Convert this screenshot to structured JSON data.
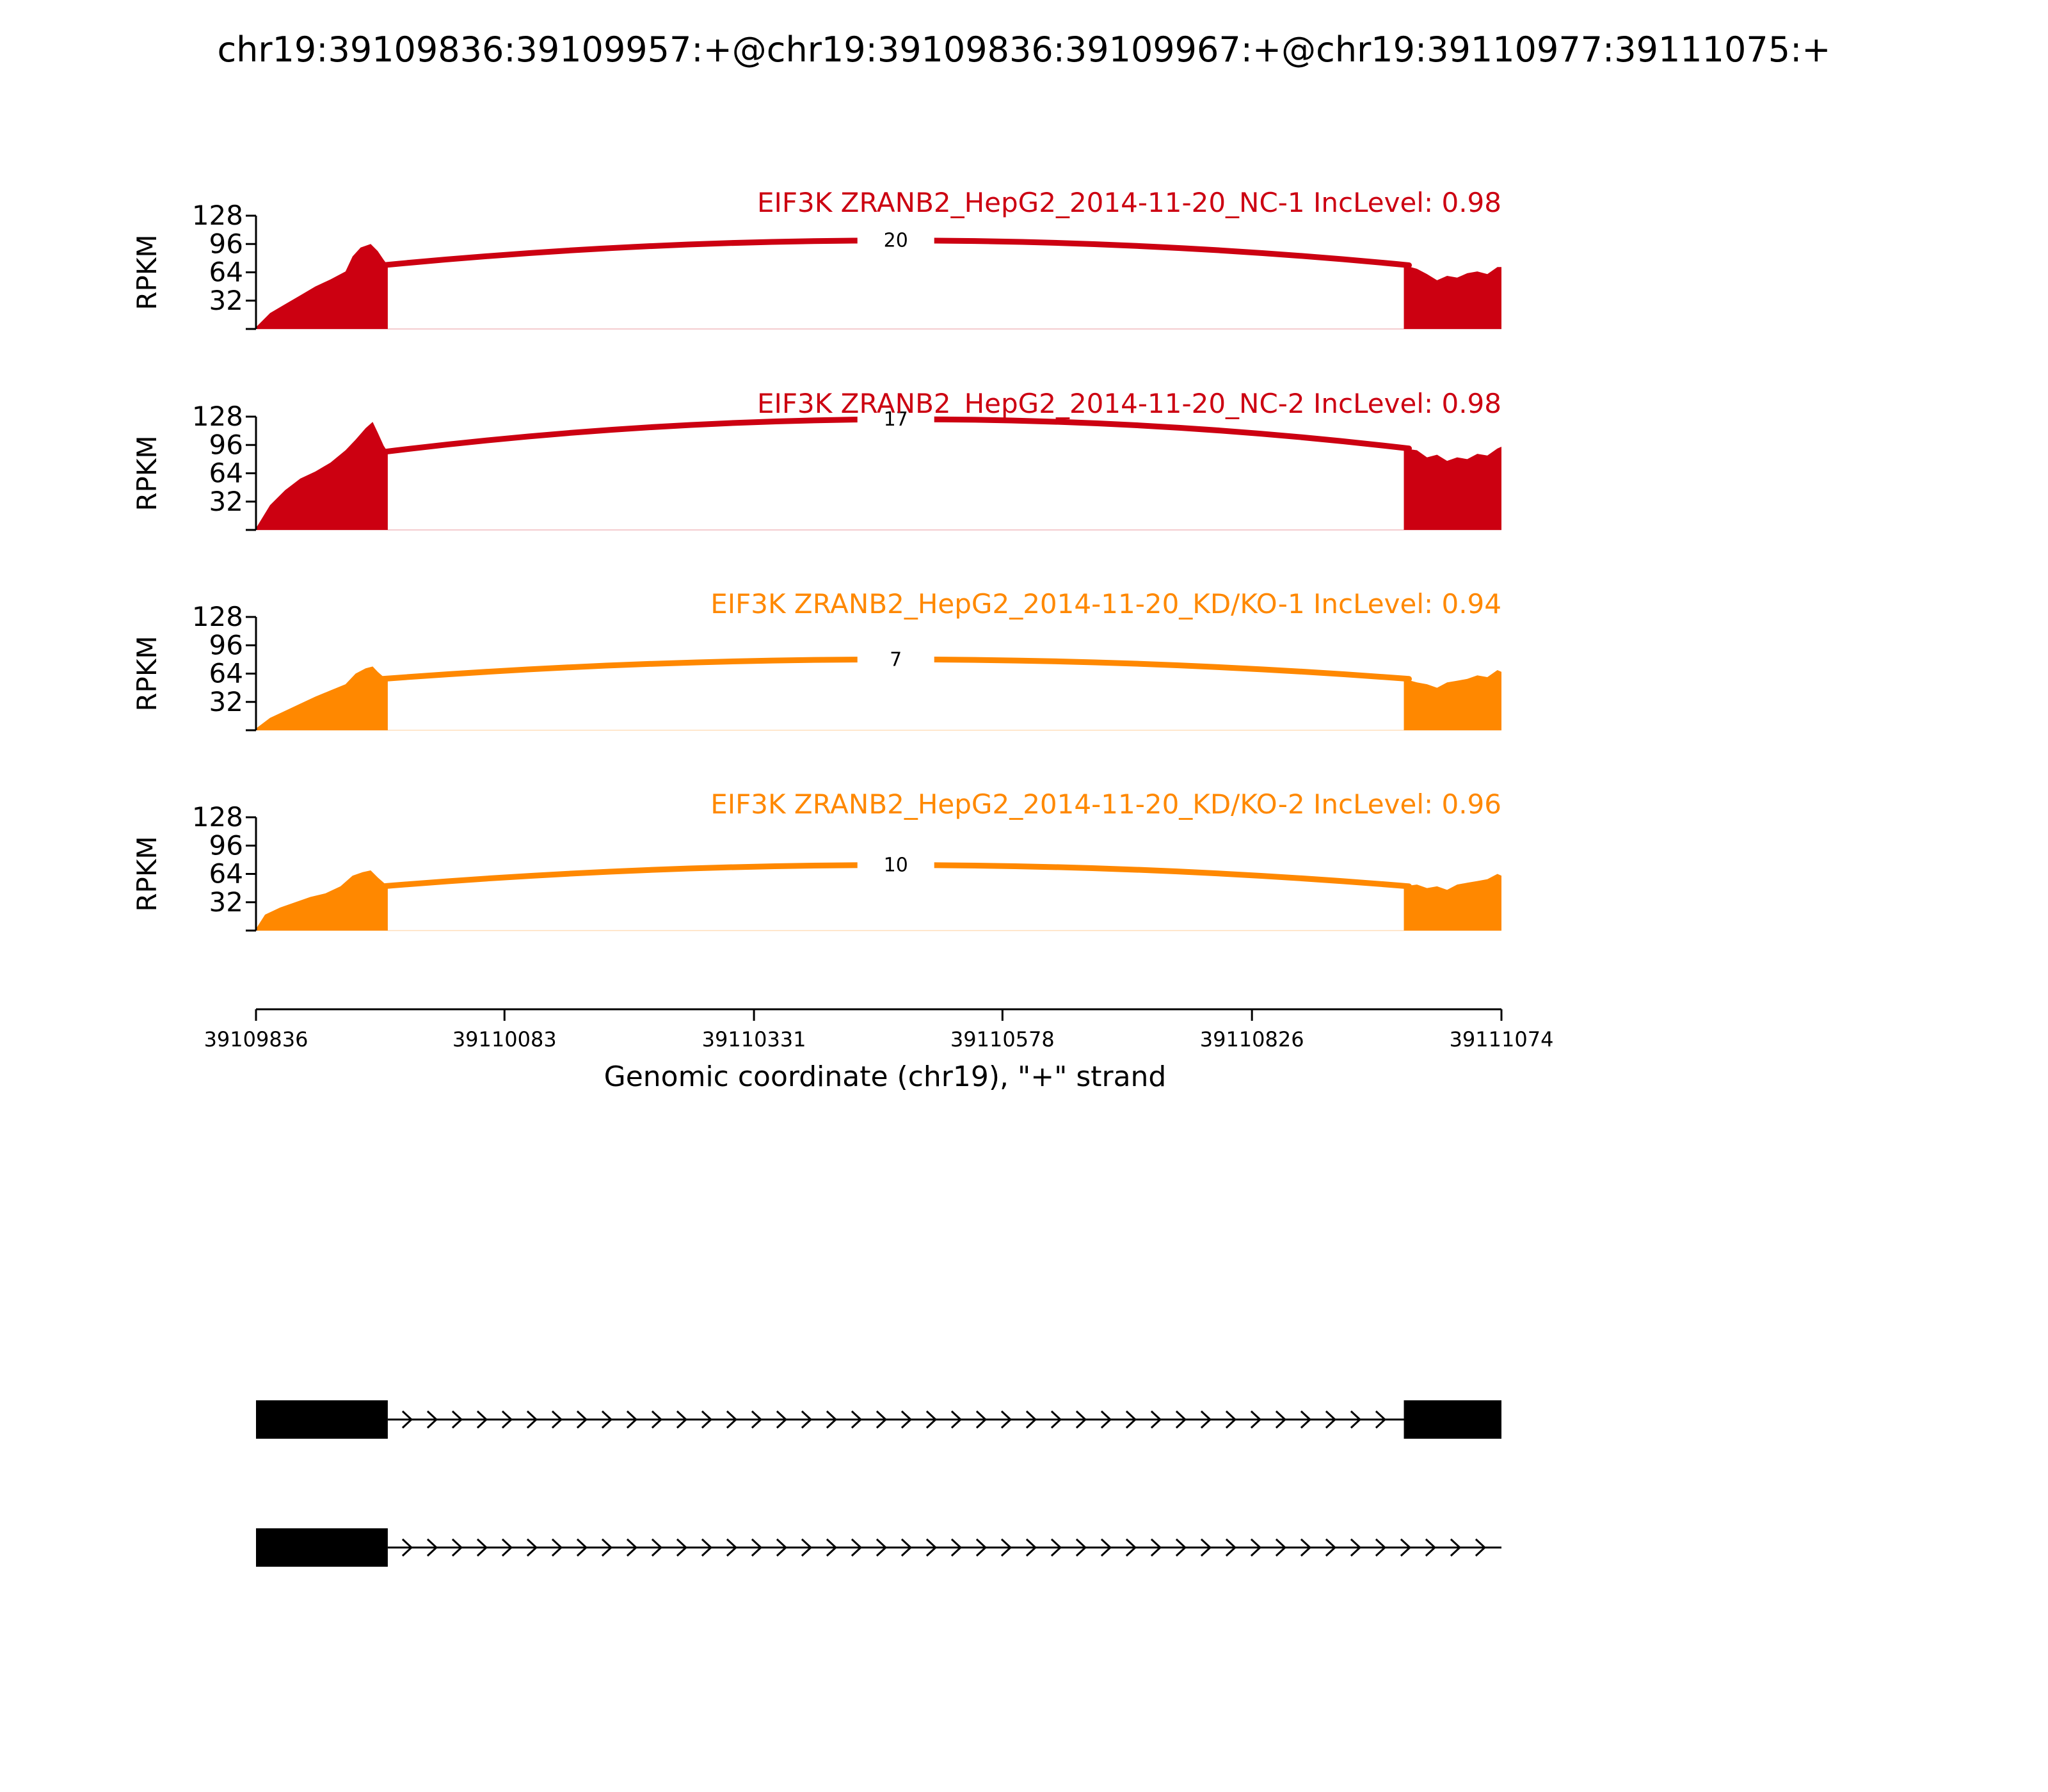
{
  "title": "chr19:39109836:39109957:+@chr19:39109836:39109967:+@chr19:39110977:39111075:+",
  "chart_data": {
    "type": "area",
    "title": "chr19:39109836:39109957:+@chr19:39109836:39109967:+@chr19:39110977:39111075:+",
    "xlabel": "Genomic coordinate (chr19), \"+\" strand",
    "ylabel": "RPKM",
    "xlim": [
      39109836,
      39111074
    ],
    "ylim": [
      0,
      128
    ],
    "x_ticks": [
      "39109836",
      "39110083",
      "39110331",
      "39110578",
      "39110826",
      "39111074"
    ],
    "y_ticks": [
      "128",
      "96",
      "64",
      "32"
    ],
    "exon1": [
      39109836,
      39109967
    ],
    "exon2": [
      39110977,
      39111074
    ],
    "tracks": [
      {
        "name": "EIF3K ZRANB2_HepG2_2014-11-20_NC-1 IncLevel: 0.98",
        "color": "#cc0011",
        "junction_count": "20",
        "junction_peak": 100,
        "exon1_coverage": [
          [
            39109836,
            2
          ],
          [
            39109850,
            18
          ],
          [
            39109865,
            28
          ],
          [
            39109880,
            38
          ],
          [
            39109895,
            48
          ],
          [
            39109910,
            56
          ],
          [
            39109925,
            65
          ],
          [
            39109932,
            82
          ],
          [
            39109940,
            92
          ],
          [
            39109950,
            96
          ],
          [
            39109957,
            88
          ],
          [
            39109963,
            78
          ],
          [
            39109967,
            72
          ]
        ],
        "exon2_coverage": [
          [
            39110977,
            72
          ],
          [
            39110990,
            68
          ],
          [
            39111000,
            62
          ],
          [
            39111010,
            55
          ],
          [
            39111020,
            60
          ],
          [
            39111030,
            58
          ],
          [
            39111040,
            63
          ],
          [
            39111050,
            65
          ],
          [
            39111060,
            62
          ],
          [
            39111070,
            70
          ],
          [
            39111074,
            70
          ]
        ]
      },
      {
        "name": "EIF3K ZRANB2_HepG2_2014-11-20_NC-2 IncLevel: 0.98",
        "color": "#cc0011",
        "junction_count": "17",
        "junction_peak": 125,
        "exon1_coverage": [
          [
            39109836,
            2
          ],
          [
            39109850,
            28
          ],
          [
            39109865,
            45
          ],
          [
            39109880,
            58
          ],
          [
            39109895,
            66
          ],
          [
            39109910,
            76
          ],
          [
            39109925,
            90
          ],
          [
            39109935,
            102
          ],
          [
            39109945,
            115
          ],
          [
            39109952,
            122
          ],
          [
            39109957,
            110
          ],
          [
            39109963,
            95
          ],
          [
            39109967,
            88
          ]
        ],
        "exon2_coverage": [
          [
            39110977,
            92
          ],
          [
            39110990,
            90
          ],
          [
            39111000,
            82
          ],
          [
            39111010,
            85
          ],
          [
            39111020,
            78
          ],
          [
            39111030,
            82
          ],
          [
            39111040,
            80
          ],
          [
            39111050,
            86
          ],
          [
            39111060,
            84
          ],
          [
            39111070,
            92
          ],
          [
            39111074,
            94
          ]
        ]
      },
      {
        "name": "EIF3K ZRANB2_HepG2_2014-11-20_KD/KO-1 IncLevel: 0.94",
        "color": "#ff8800",
        "junction_count": "7",
        "junction_peak": 80,
        "exon1_coverage": [
          [
            39109836,
            2
          ],
          [
            39109850,
            14
          ],
          [
            39109865,
            22
          ],
          [
            39109880,
            30
          ],
          [
            39109895,
            38
          ],
          [
            39109910,
            45
          ],
          [
            39109925,
            52
          ],
          [
            39109935,
            64
          ],
          [
            39109945,
            70
          ],
          [
            39109952,
            72
          ],
          [
            39109957,
            66
          ],
          [
            39109963,
            60
          ],
          [
            39109967,
            58
          ]
        ],
        "exon2_coverage": [
          [
            39110977,
            58
          ],
          [
            39110990,
            54
          ],
          [
            39111000,
            52
          ],
          [
            39111010,
            48
          ],
          [
            39111020,
            54
          ],
          [
            39111030,
            56
          ],
          [
            39111040,
            58
          ],
          [
            39111050,
            62
          ],
          [
            39111060,
            60
          ],
          [
            39111070,
            68
          ],
          [
            39111074,
            66
          ]
        ]
      },
      {
        "name": "EIF3K ZRANB2_HepG2_2014-11-20_KD/KO-2 IncLevel: 0.96",
        "color": "#ff8800",
        "junction_count": "10",
        "junction_peak": 74,
        "exon1_coverage": [
          [
            39109836,
            2
          ],
          [
            39109845,
            18
          ],
          [
            39109860,
            26
          ],
          [
            39109875,
            32
          ],
          [
            39109890,
            38
          ],
          [
            39109905,
            42
          ],
          [
            39109920,
            50
          ],
          [
            39109932,
            62
          ],
          [
            39109942,
            66
          ],
          [
            39109950,
            68
          ],
          [
            39109957,
            60
          ],
          [
            39109963,
            54
          ],
          [
            39109967,
            50
          ]
        ],
        "exon2_coverage": [
          [
            39110977,
            50
          ],
          [
            39110990,
            52
          ],
          [
            39111000,
            48
          ],
          [
            39111010,
            50
          ],
          [
            39111020,
            46
          ],
          [
            39111030,
            52
          ],
          [
            39111040,
            54
          ],
          [
            39111050,
            56
          ],
          [
            39111060,
            58
          ],
          [
            39111070,
            64
          ],
          [
            39111074,
            62
          ]
        ]
      }
    ],
    "isoforms": [
      {
        "exons": [
          [
            39109836,
            39109967
          ],
          [
            39110977,
            39111074
          ]
        ],
        "intron_end": 39110977
      },
      {
        "exons": [
          [
            39109836,
            39109967
          ]
        ],
        "intron_end": 39111074
      }
    ]
  }
}
